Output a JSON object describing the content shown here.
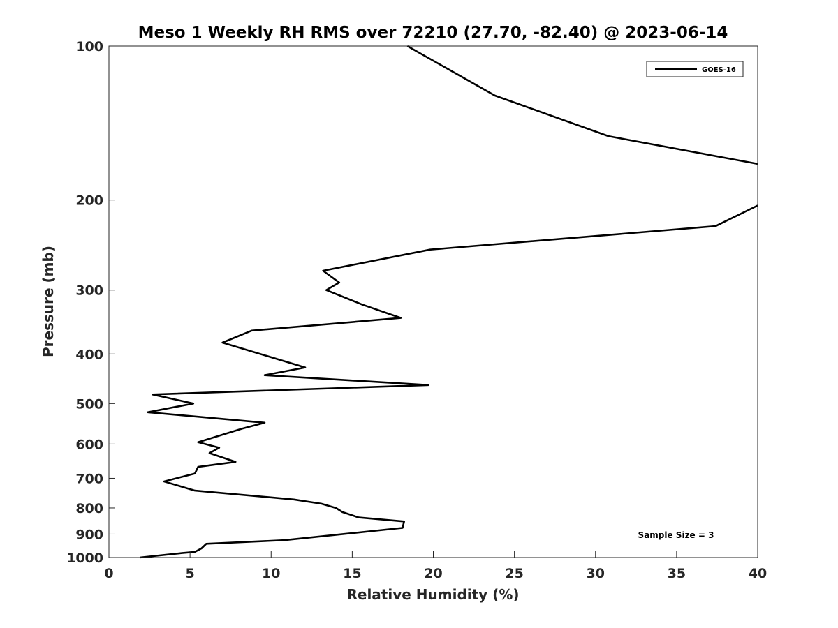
{
  "chart_data": {
    "type": "line",
    "title": "Meso 1 Weekly RH RMS over 72210 (27.70, -82.40) @ 2023-06-14",
    "xlabel": "Relative Humidity (%)",
    "ylabel": "Pressure (mb)",
    "xlim": [
      0,
      40
    ],
    "ylim": [
      100,
      1000
    ],
    "yscale": "log",
    "y_reversed": true,
    "grid": false,
    "legend_position": "top-right",
    "x_ticks": [
      0,
      5,
      10,
      15,
      20,
      25,
      30,
      35,
      40
    ],
    "y_ticks": [
      100,
      200,
      300,
      400,
      500,
      600,
      700,
      800,
      900,
      1000
    ],
    "annotation": "Sample Size = 3",
    "series": [
      {
        "name": "GOES-16",
        "color": "#000000",
        "segments": [
          [
            [
              18.4,
              100
            ],
            [
              23.8,
              125
            ],
            [
              30.8,
              150
            ],
            [
              40.0,
              170
            ]
          ],
          [
            [
              40.0,
              205
            ],
            [
              37.4,
              225
            ],
            [
              19.8,
              250
            ],
            [
              13.2,
              275
            ],
            [
              14.2,
              290
            ],
            [
              13.4,
              300
            ],
            [
              15.6,
              320
            ],
            [
              18.0,
              340
            ],
            [
              8.8,
              360
            ],
            [
              7.0,
              380
            ],
            [
              12.1,
              425
            ],
            [
              9.6,
              440
            ],
            [
              19.7,
              460
            ],
            [
              2.7,
              480
            ],
            [
              5.2,
              500
            ],
            [
              2.4,
              520
            ],
            [
              9.6,
              545
            ],
            [
              8.2,
              560
            ],
            [
              5.5,
              595
            ],
            [
              6.8,
              610
            ],
            [
              6.2,
              625
            ],
            [
              7.8,
              650
            ],
            [
              5.5,
              665
            ],
            [
              5.3,
              685
            ],
            [
              3.4,
              710
            ],
            [
              5.3,
              740
            ],
            [
              11.4,
              770
            ],
            [
              13.1,
              785
            ],
            [
              14.0,
              800
            ],
            [
              14.4,
              815
            ],
            [
              15.4,
              835
            ],
            [
              18.2,
              850
            ],
            [
              18.1,
              875
            ],
            [
              10.8,
              925
            ],
            [
              6.0,
              940
            ],
            [
              5.7,
              960
            ],
            [
              5.3,
              975
            ],
            [
              4.5,
              980
            ],
            [
              1.9,
              1000
            ]
          ]
        ]
      }
    ]
  }
}
